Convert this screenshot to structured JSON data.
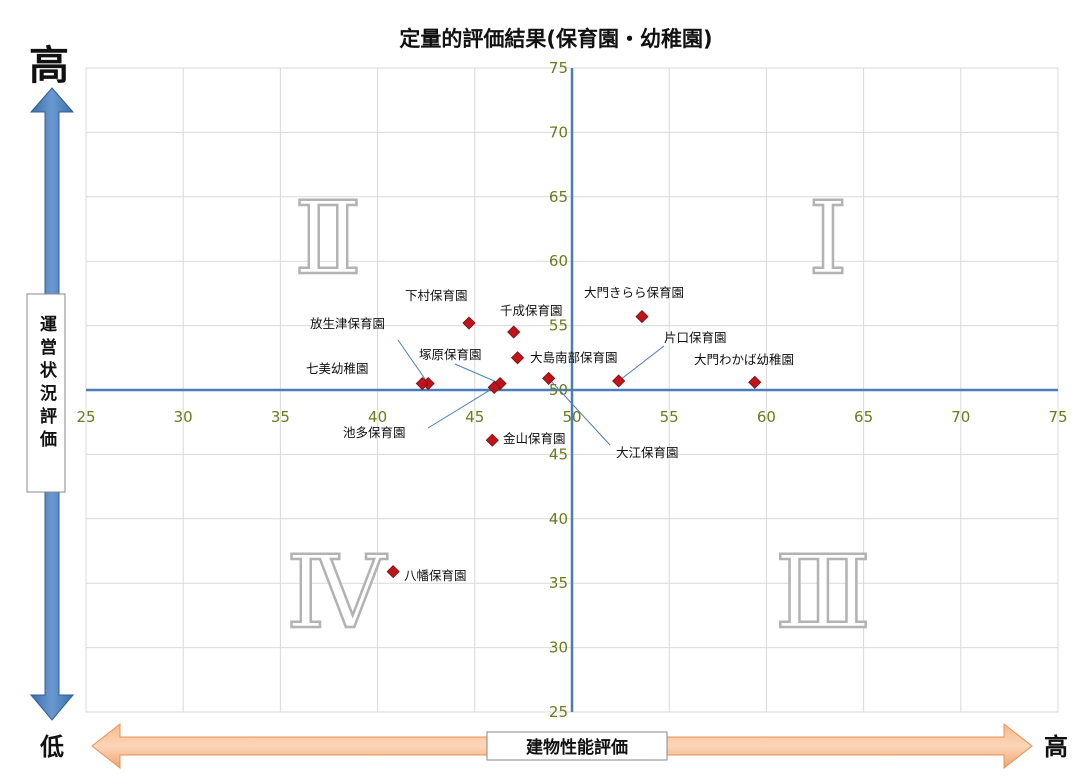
{
  "chart_data": {
    "type": "scatter",
    "title": "定量的評価結果(保育園・幼稚園)",
    "xlim": [
      25,
      75
    ],
    "ylim": [
      25,
      75
    ],
    "x_ticks": [
      25,
      30,
      35,
      40,
      45,
      50,
      55,
      60,
      65,
      70,
      75
    ],
    "y_ticks": [
      25,
      30,
      35,
      40,
      45,
      50,
      55,
      60,
      65,
      70,
      75
    ],
    "xlabel": "建物性能評価",
    "ylabel": "運営状況評価",
    "x_axis_low": "低",
    "x_axis_high": "高",
    "y_axis_high": "高",
    "grid": true,
    "quadrants": [
      "Ⅰ",
      "Ⅱ",
      "Ⅲ",
      "Ⅳ"
    ],
    "points": [
      {
        "label": "下村保育園",
        "x": 44.7,
        "y": 55.2
      },
      {
        "label": "大門きらら保育園",
        "x": 53.6,
        "y": 55.7
      },
      {
        "label": "千成保育園",
        "x": 47.0,
        "y": 54.5
      },
      {
        "label": "放生津保育園",
        "x": 42.6,
        "y": 50.5
      },
      {
        "label": "片口保育園",
        "x": 52.4,
        "y": 50.7
      },
      {
        "label": "塚原保育園",
        "x": 46.3,
        "y": 50.5
      },
      {
        "label": "大島南部保育園",
        "x": 47.2,
        "y": 52.5
      },
      {
        "label": "七美幼稚園",
        "x": 42.3,
        "y": 50.5
      },
      {
        "label": "大門わかば幼稚園",
        "x": 59.4,
        "y": 50.6
      },
      {
        "label": "池多保育園",
        "x": 46.0,
        "y": 50.2
      },
      {
        "label": "金山保育園",
        "x": 45.9,
        "y": 46.1
      },
      {
        "label": "大江保育園",
        "x": 48.8,
        "y": 50.9
      },
      {
        "label": "八幡保育園",
        "x": 40.8,
        "y": 35.9
      }
    ],
    "marker_color": "#c0141b",
    "divider_color": "#4a7ebb",
    "grid_color": "#d9d9d9",
    "tick_color": "#6b7a1c"
  }
}
